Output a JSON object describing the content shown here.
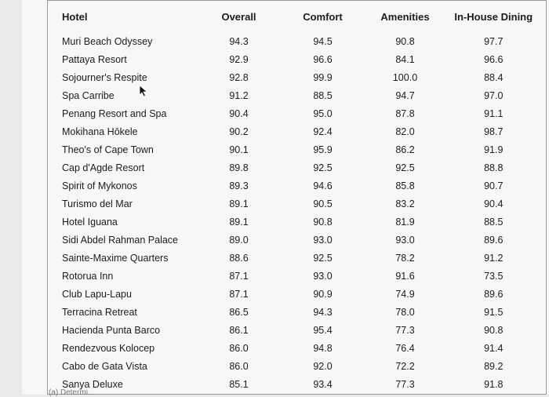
{
  "table": {
    "columns": [
      "Hotel",
      "Overall",
      "Comfort",
      "Amenities",
      "In-House Dining"
    ],
    "rows": [
      [
        "Muri Beach Odyssey",
        "94.3",
        "94.5",
        "90.8",
        "97.7"
      ],
      [
        "Pattaya Resort",
        "92.9",
        "96.6",
        "84.1",
        "96.6"
      ],
      [
        "Sojourner's Respite",
        "92.8",
        "99.9",
        "100.0",
        "88.4"
      ],
      [
        "Spa Carribe",
        "91.2",
        "88.5",
        "94.7",
        "97.0"
      ],
      [
        "Penang Resort and Spa",
        "90.4",
        "95.0",
        "87.8",
        "91.1"
      ],
      [
        "Mokihana Hōkele",
        "90.2",
        "92.4",
        "82.0",
        "98.7"
      ],
      [
        "Theo's of Cape Town",
        "90.1",
        "95.9",
        "86.2",
        "91.9"
      ],
      [
        "Cap d'Agde Resort",
        "89.8",
        "92.5",
        "92.5",
        "88.8"
      ],
      [
        "Spirit of Mykonos",
        "89.3",
        "94.6",
        "85.8",
        "90.7"
      ],
      [
        "Turismo del Mar",
        "89.1",
        "90.5",
        "83.2",
        "90.4"
      ],
      [
        "Hotel Iguana",
        "89.1",
        "90.8",
        "81.9",
        "88.5"
      ],
      [
        "Sidi Abdel Rahman Palace",
        "89.0",
        "93.0",
        "93.0",
        "89.6"
      ],
      [
        "Sainte-Maxime Quarters",
        "88.6",
        "92.5",
        "78.2",
        "91.2"
      ],
      [
        "Rotorua Inn",
        "87.1",
        "93.0",
        "91.6",
        "73.5"
      ],
      [
        "Club Lapu-Lapu",
        "87.1",
        "90.9",
        "74.9",
        "89.6"
      ],
      [
        "Terracina Retreat",
        "86.5",
        "94.3",
        "78.0",
        "91.5"
      ],
      [
        "Hacienda Punta Barco",
        "86.1",
        "95.4",
        "77.3",
        "90.8"
      ],
      [
        "Rendezvous Kolocep",
        "86.0",
        "94.8",
        "76.4",
        "91.4"
      ],
      [
        "Cabo de Gata Vista",
        "86.0",
        "92.0",
        "72.2",
        "89.2"
      ],
      [
        "Sanya Deluxe",
        "85.1",
        "93.4",
        "77.3",
        "91.8"
      ]
    ]
  },
  "footer_fragment": "(a) Determi..."
}
